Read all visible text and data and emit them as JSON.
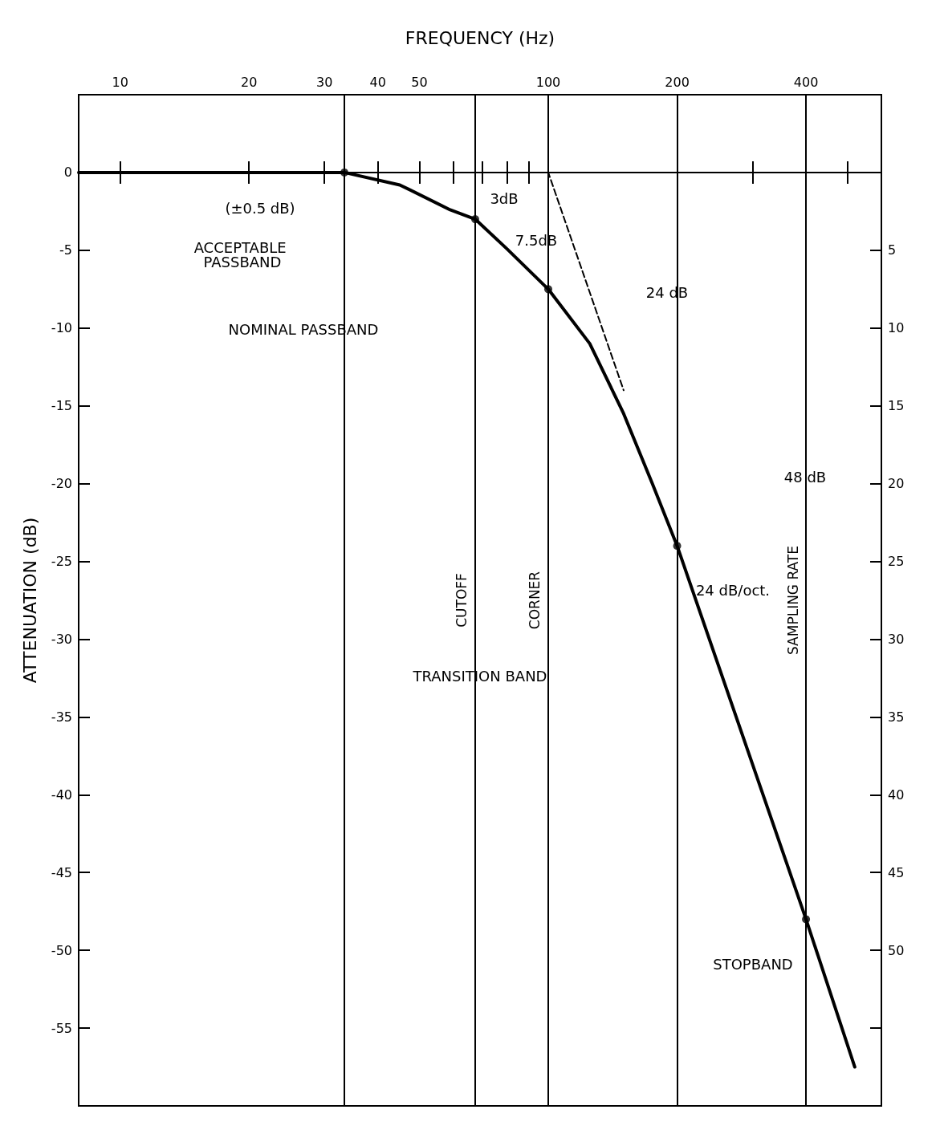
{
  "chart_data": {
    "type": "line",
    "xlabel": "FREQUENCY (Hz)",
    "ylabel": "ATTENUATION (dB)",
    "log": "x",
    "grid": false,
    "xlim": [
      8,
      600
    ],
    "xticks": [
      10,
      20,
      30,
      40,
      50,
      {
        "value": 60,
        "label": null
      },
      {
        "value": 70,
        "label": null
      },
      {
        "value": 80,
        "label": null
      },
      {
        "value": 90,
        "label": null
      },
      100,
      200,
      {
        "value": 300,
        "label": null
      },
      400,
      {
        "value": 500,
        "label": null
      }
    ],
    "ylim": [
      -60,
      5
    ],
    "yticks": [
      0,
      -5,
      -10,
      -15,
      -20,
      -25,
      -30,
      -35,
      -40,
      -45,
      -50,
      -55
    ],
    "y2lim": [
      -60,
      5
    ],
    "y2ticks": [
      {
        "value": -5,
        "label": "5"
      },
      {
        "value": -10,
        "label": "10"
      },
      {
        "value": -15,
        "label": "15"
      },
      {
        "value": -20,
        "label": "20"
      },
      {
        "value": -25,
        "label": "25"
      },
      {
        "value": -30,
        "label": "30"
      },
      {
        "value": -35,
        "label": "35"
      },
      {
        "value": -40,
        "label": "40"
      },
      {
        "value": -45,
        "label": "45"
      },
      {
        "value": -50,
        "label": "50"
      },
      {
        "value": -55,
        "label": null
      }
    ],
    "series": [
      {
        "color": "#000000",
        "line_style": "solid",
        "marker": "none",
        "x": [
          8,
          33.4,
          45,
          59,
          67.5,
          80,
          100,
          125,
          150,
          175,
          200,
          400,
          520
        ],
        "values": [
          0,
          0,
          -0.8,
          -2.4,
          -3,
          -4.9,
          -7.5,
          -11,
          -15.5,
          -20,
          -24,
          -48,
          -57.5
        ]
      },
      {
        "type": "line",
        "color": "#000000",
        "line_style": "dashed",
        "marker": "none",
        "x": [
          33.4,
          100,
          150
        ],
        "values": [
          0,
          0,
          -14
        ]
      },
      {
        "type": "scatter",
        "color": "#000000",
        "marker": "circle",
        "x": [
          33.4,
          67.5,
          100,
          200,
          400
        ],
        "values": [
          0,
          -3,
          -7.5,
          -24,
          -48
        ]
      }
    ],
    "ref_lines": [
      {
        "axis": "x",
        "value": 33.4,
        "label": null
      },
      {
        "axis": "x",
        "value": 67.5,
        "label": "CUTOFF"
      },
      {
        "axis": "x",
        "value": 100,
        "label": "CORNER"
      },
      {
        "axis": "x",
        "value": 200,
        "label": null
      },
      {
        "axis": "x",
        "value": 400,
        "label": "SAMPLING RATE"
      },
      {
        "axis": "y",
        "value": 0,
        "label": null
      }
    ],
    "annotations": [
      "(±0.5 dB)",
      "ACCEPTABLE PASSBAND",
      "NOMINAL PASSBAND",
      "3dB",
      "7.5dB",
      "24 dB",
      "48 dB",
      "24 dB/oct.",
      "TRANSITION BAND",
      "STOPBAND"
    ]
  }
}
